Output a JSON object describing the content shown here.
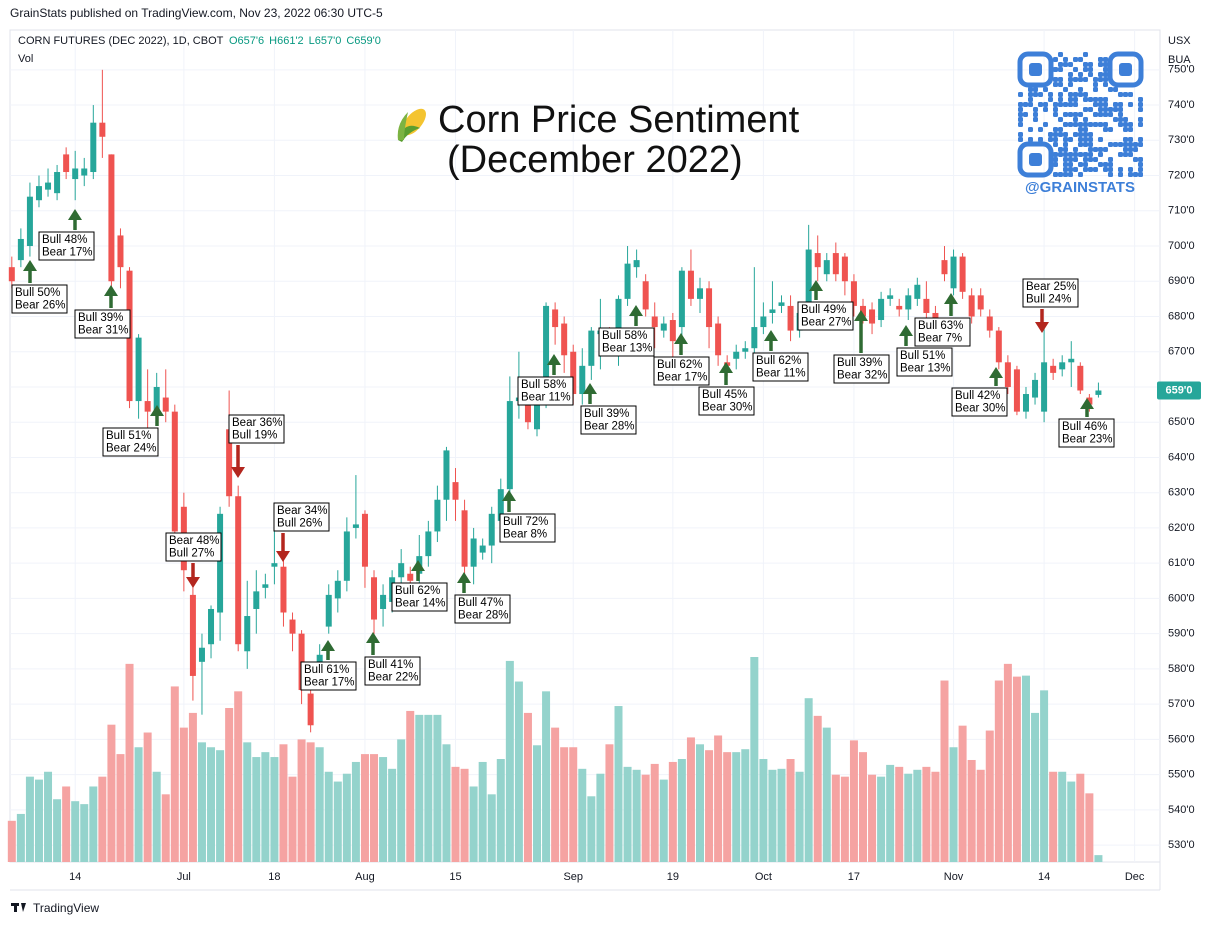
{
  "publisher": "GrainStats published on TradingView.com, Nov 23, 2022 06:30 UTC-5",
  "footer": "TradingView",
  "handle": "@GRAINSTATS",
  "chart_data": {
    "type": "candlestick",
    "title": "Corn Price Sentiment",
    "subtitle": "(December 2022)",
    "symbol": "CORN FUTURES (DEC 2022), 1D, CBOT",
    "legend_ohlc": [
      "O657'6",
      "H661'2",
      "L657'0",
      "C659'0"
    ],
    "volume_label": "Vol",
    "currency": "USX",
    "unit": "BUA",
    "up_color": "#26a69a",
    "down_color": "#ef5350",
    "volume_up_color": "#94d3cc",
    "volume_down_color": "#f5a3a2",
    "grid": true,
    "xlim": [
      -0.2,
      126.8
    ],
    "xticks": [
      {
        "value": 7,
        "label": "14"
      },
      {
        "value": 19,
        "label": "Jul"
      },
      {
        "value": 29,
        "label": "18"
      },
      {
        "value": 39,
        "label": "Aug"
      },
      {
        "value": 49,
        "label": "15"
      },
      {
        "value": 62,
        "label": "Sep"
      },
      {
        "value": 73,
        "label": "19"
      },
      {
        "value": 83,
        "label": "Oct"
      },
      {
        "value": 93,
        "label": "17"
      },
      {
        "value": 104,
        "label": "Nov"
      },
      {
        "value": 114,
        "label": "14"
      },
      {
        "value": 124,
        "label": "Dec"
      }
    ],
    "ylim": [
      525.2,
      761.3
    ],
    "yticks": [
      {
        "value": 530,
        "label": "530'0"
      },
      {
        "value": 540,
        "label": "540'0"
      },
      {
        "value": 550,
        "label": "550'0"
      },
      {
        "value": 560,
        "label": "560'0"
      },
      {
        "value": 570,
        "label": "570'0"
      },
      {
        "value": 580,
        "label": "580'0"
      },
      {
        "value": 590,
        "label": "590'0"
      },
      {
        "value": 600,
        "label": "600'0"
      },
      {
        "value": 610,
        "label": "610'0"
      },
      {
        "value": 620,
        "label": "620'0"
      },
      {
        "value": 630,
        "label": "630'0"
      },
      {
        "value": 640,
        "label": "640'0"
      },
      {
        "value": 650,
        "label": "650'0"
      },
      {
        "value": 660,
        "label": "660'0"
      },
      {
        "value": 670,
        "label": "670'0"
      },
      {
        "value": 680,
        "label": "680'0"
      },
      {
        "value": 690,
        "label": "690'0"
      },
      {
        "value": 700,
        "label": "700'0"
      },
      {
        "value": 710,
        "label": "710'0"
      },
      {
        "value": 720,
        "label": "720'0"
      },
      {
        "value": 730,
        "label": "730'0"
      },
      {
        "value": 740,
        "label": "740'0"
      },
      {
        "value": 750,
        "label": "750'0"
      }
    ],
    "last_price": {
      "value": 659,
      "label": "659'0"
    },
    "open": [
      694,
      696,
      700,
      713,
      716,
      715,
      726,
      719,
      720,
      721,
      735,
      726,
      703,
      693,
      656,
      656,
      653,
      657,
      653,
      626,
      601,
      582,
      587,
      596,
      648,
      629,
      585,
      597,
      603,
      609,
      609,
      594,
      590,
      573,
      580,
      592,
      600,
      605,
      620,
      624,
      606,
      597,
      599,
      606,
      607,
      607,
      612,
      619,
      628,
      633,
      625,
      609,
      613,
      615,
      622,
      631,
      656,
      658,
      648,
      658,
      682,
      678,
      670,
      658,
      666,
      675,
      675,
      673,
      685,
      694,
      690,
      680,
      676,
      679,
      677,
      693,
      685,
      688,
      678,
      667,
      668,
      670,
      671,
      677,
      681,
      683,
      683,
      676,
      683,
      698,
      692,
      698,
      697,
      690,
      683,
      682,
      679,
      685,
      683,
      682,
      685,
      685,
      681,
      696,
      688,
      697,
      686,
      686,
      680,
      676,
      667,
      665,
      653,
      657,
      653,
      666,
      665,
      667,
      666,
      657,
      657.75
    ],
    "high": [
      697,
      705,
      718,
      720,
      722,
      723,
      728,
      727,
      725,
      740,
      750,
      726,
      705,
      694,
      675,
      665,
      664,
      665,
      655,
      630,
      604,
      590,
      598,
      626,
      659,
      632,
      605,
      608,
      607,
      620,
      612,
      596,
      591,
      575,
      587,
      604,
      608,
      623,
      635,
      625,
      608,
      604,
      608,
      614,
      609,
      618,
      622,
      632,
      643,
      637,
      628,
      620,
      617,
      626,
      634,
      663,
      670,
      659,
      660,
      684,
      684,
      680,
      672,
      671,
      677,
      685,
      677,
      686,
      700,
      699,
      692,
      684,
      680,
      681,
      694,
      699,
      691,
      690,
      680,
      669,
      672,
      673,
      694,
      684,
      690,
      686,
      686,
      683,
      706,
      703,
      698,
      701,
      698,
      692,
      685,
      684,
      687,
      688,
      685,
      688,
      691,
      690,
      683,
      700,
      699,
      698,
      688,
      688,
      682,
      677,
      669,
      666,
      660,
      664,
      677,
      668,
      669,
      673,
      667,
      658,
      661.25
    ],
    "low": [
      688,
      694,
      697,
      711,
      714,
      713,
      719,
      713,
      717,
      719,
      725,
      683,
      688,
      654,
      651,
      648,
      650,
      650,
      617,
      602,
      571,
      567,
      583,
      588,
      626,
      585,
      580,
      590,
      600,
      604,
      592,
      585,
      570,
      562,
      577,
      590,
      596,
      602,
      617,
      603,
      588,
      592,
      596,
      603,
      603,
      604,
      609,
      616,
      622,
      622,
      605,
      604,
      611,
      610,
      618,
      628,
      651,
      648,
      646,
      654,
      672,
      664,
      655,
      655,
      662,
      665,
      670,
      666,
      683,
      691,
      680,
      671,
      674,
      668,
      671,
      683,
      681,
      671,
      666,
      663,
      665,
      668,
      668,
      675,
      678,
      681,
      673,
      674,
      681,
      690,
      690,
      690,
      686,
      680,
      678,
      675,
      677,
      683,
      680,
      679,
      683,
      678,
      677,
      690,
      686,
      685,
      678,
      680,
      674,
      665,
      658,
      652,
      651,
      655,
      650,
      662,
      663,
      660,
      658,
      653,
      657
    ],
    "close": [
      690,
      702,
      714,
      717,
      718,
      721,
      721,
      722,
      722,
      735,
      731,
      690,
      694,
      656,
      674,
      653,
      660,
      653,
      619,
      608,
      578,
      586,
      597,
      624,
      629,
      587,
      595,
      602,
      604,
      610,
      596,
      590,
      574,
      564,
      584,
      601,
      605,
      619,
      621,
      609,
      594,
      601,
      606,
      610,
      605,
      612,
      619,
      628,
      642,
      628,
      609,
      617,
      615,
      624,
      631,
      656,
      657,
      650,
      657,
      683,
      677,
      669,
      658,
      666,
      676,
      676,
      673,
      685,
      695,
      696,
      682,
      677,
      678,
      673,
      693,
      685,
      688,
      677,
      669,
      666,
      670,
      671,
      677,
      680,
      682,
      684,
      676,
      681,
      699,
      694,
      696,
      692,
      690,
      683,
      680,
      678,
      685,
      686,
      682,
      686,
      689,
      681,
      679,
      692,
      697,
      687,
      680,
      682,
      676,
      667,
      660,
      653,
      658,
      662,
      667,
      664,
      667,
      668,
      659,
      655,
      659
    ],
    "volume": [
      42,
      49,
      87,
      84,
      92,
      64,
      77,
      62,
      59,
      77,
      87,
      140,
      110,
      202,
      117,
      132,
      92,
      69,
      179,
      137,
      152,
      122,
      117,
      114,
      157,
      174,
      122,
      107,
      112,
      107,
      120,
      87,
      125,
      122,
      117,
      92,
      82,
      90,
      102,
      110,
      110,
      107,
      95,
      125,
      154,
      150,
      150,
      150,
      120,
      97,
      95,
      77,
      102,
      69,
      105,
      205,
      184,
      152,
      119,
      174,
      137,
      117,
      117,
      95,
      67,
      90,
      120,
      159,
      97,
      94,
      89,
      100,
      84,
      102,
      105,
      127,
      120,
      114,
      129,
      112,
      112,
      115,
      209,
      105,
      94,
      95,
      105,
      92,
      167,
      149,
      137,
      89,
      87,
      124,
      112,
      89,
      87,
      99,
      97,
      90,
      94,
      97,
      92,
      185,
      117,
      139,
      104,
      94,
      134,
      185,
      202,
      189,
      190,
      152,
      175,
      92,
      92,
      82,
      90,
      70,
      7
    ],
    "annotations": [
      {
        "lines": [
          "Bull 50%",
          "Bear 26%"
        ]
      },
      {
        "lines": [
          "Bull 48%",
          "Bear 17%"
        ]
      },
      {
        "lines": [
          "Bull 39%",
          "Bear 31%"
        ]
      },
      {
        "lines": [
          "Bull 51%",
          "Bear 24%"
        ]
      },
      {
        "lines": [
          "Bear 48%",
          "Bull 27%"
        ]
      },
      {
        "lines": [
          "Bear 36%",
          "Bull 19%"
        ]
      },
      {
        "lines": [
          "Bear 34%",
          "Bull 26%"
        ]
      },
      {
        "lines": [
          "Bull 61%",
          "Bear 17%"
        ]
      },
      {
        "lines": [
          "Bull 41%",
          "Bear 22%"
        ]
      },
      {
        "lines": [
          "Bull 62%",
          "Bear 14%"
        ]
      },
      {
        "lines": [
          "Bull 47%",
          "Bear 28%"
        ]
      },
      {
        "lines": [
          "Bull 72%",
          "Bear 8%"
        ]
      },
      {
        "lines": [
          "Bull 58%",
          "Bear 11%"
        ]
      },
      {
        "lines": [
          "Bull 39%",
          "Bear 28%"
        ]
      },
      {
        "lines": [
          "Bull 58%",
          "Bear 13%"
        ]
      },
      {
        "lines": [
          "Bull 62%",
          "Bear 17%"
        ]
      },
      {
        "lines": [
          "Bull 45%",
          "Bear 30%"
        ]
      },
      {
        "lines": [
          "Bull 62%",
          "Bear 11%"
        ]
      },
      {
        "lines": [
          "Bull 49%",
          "Bear 27%"
        ]
      },
      {
        "lines": [
          "Bull 39%",
          "Bear 32%"
        ]
      },
      {
        "lines": [
          "Bull 51%",
          "Bear 13%"
        ]
      },
      {
        "lines": [
          "Bull 63%",
          "Bear 7%"
        ]
      },
      {
        "lines": [
          "Bull 42%",
          "Bear 30%"
        ]
      },
      {
        "lines": [
          "Bear 25%",
          "Bull 24%"
        ]
      },
      {
        "lines": [
          "Bull 46%",
          "Bear 23%"
        ]
      }
    ]
  }
}
